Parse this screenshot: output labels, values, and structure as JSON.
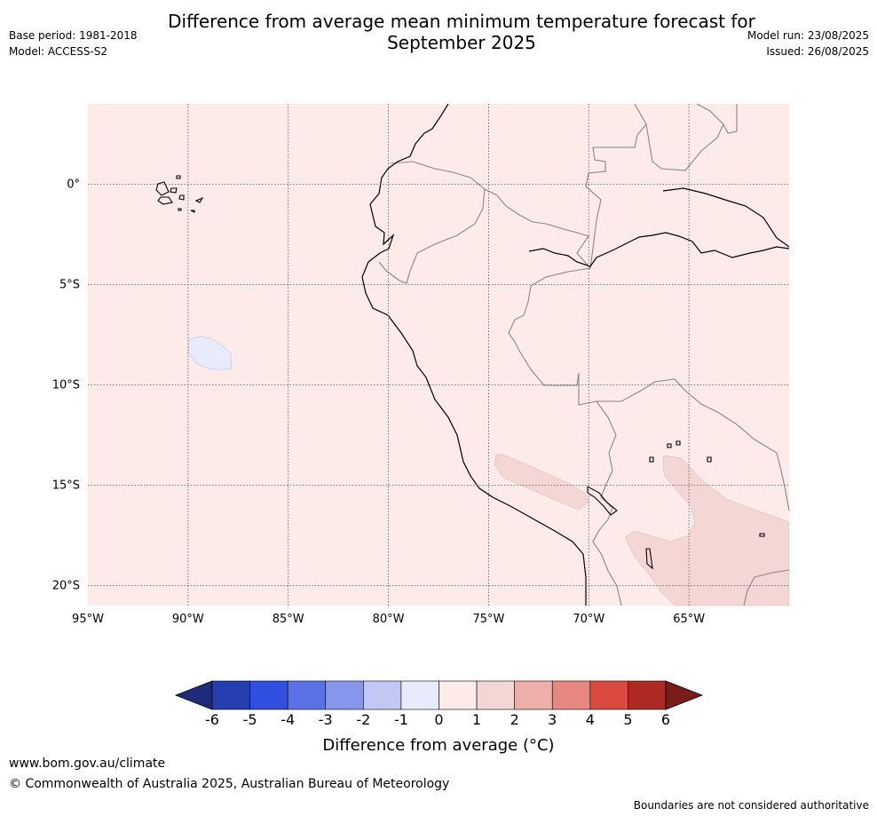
{
  "header": {
    "title_line1": "Difference from average mean minimum temperature forecast for",
    "title_line2": "September 2025",
    "base_period": "Base period: 1981-2018",
    "model": "Model: ACCESS-S2",
    "model_run": "Model run: 23/08/2025",
    "issued": "Issued: 26/08/2025"
  },
  "map": {
    "lon_range": [
      -95,
      -60
    ],
    "lat_range": [
      -21,
      4
    ],
    "background_color": "#fcebe9",
    "land_border_color": "#000000",
    "country_border_color": "#888888",
    "grid": true,
    "lon_ticks": [
      "95°W",
      "90°W",
      "85°W",
      "80°W",
      "75°W",
      "70°W",
      "65°W"
    ],
    "lat_ticks": [
      "0°",
      "5°S",
      "10°S",
      "15°S",
      "20°S"
    ],
    "anomaly_regions": [
      {
        "category": "-1 to 0",
        "color": "#e8ebfa",
        "location": "near 89°W 8°S"
      },
      {
        "category": "1 to 2",
        "color": "#f4d6d4",
        "location": "southern Peru coast near 74°W 15°S"
      },
      {
        "category": "1 to 2",
        "color": "#f4d6d4",
        "location": "southern Peru / Bolivia near 66°W 17°S"
      }
    ]
  },
  "colorbar": {
    "ticks": [
      "-6",
      "-5",
      "-4",
      "-3",
      "-2",
      "-1",
      "0",
      "1",
      "2",
      "3",
      "4",
      "5",
      "6"
    ],
    "colors": [
      "#1f2a7a",
      "#253fb0",
      "#3150e0",
      "#5a72e6",
      "#8596ec",
      "#c2c8f4",
      "#e8ebfa",
      "#fcebe9",
      "#f4d6d4",
      "#eeafa9",
      "#e68880",
      "#db4a40",
      "#ad2a22",
      "#7a1d1a"
    ],
    "label": "Difference from average ($^\\circ$C)",
    "label_display": "Difference from average (°C)"
  },
  "footer": {
    "website": "www.bom.gov.au/climate",
    "copyright": "© Commonwealth of Australia 2025, Australian Bureau of Meteorology",
    "disclaimer": "Boundaries are not considered authoritative"
  }
}
